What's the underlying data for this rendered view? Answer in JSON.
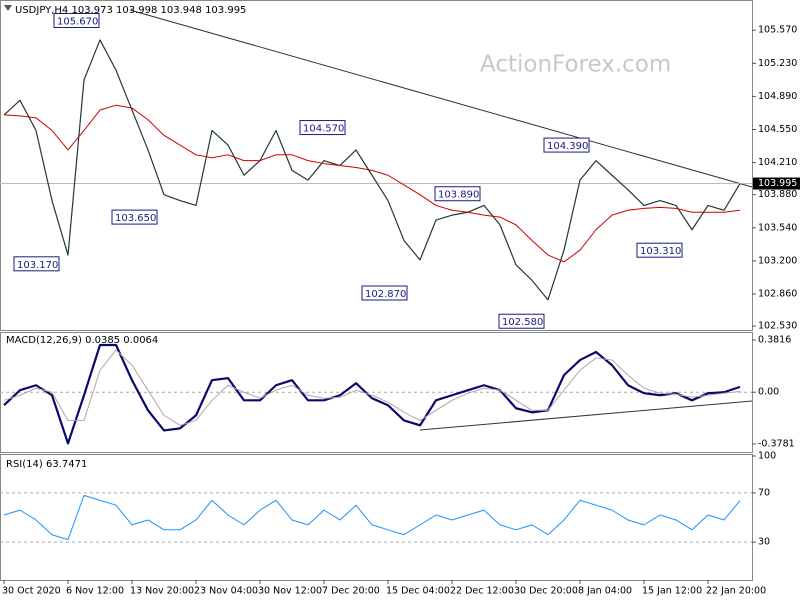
{
  "chart_data": [
    {
      "type": "line",
      "title": "USDJPY,H4  103.973 103.998 103.948 103.995",
      "watermark": "ActionForex.com",
      "ylim": [
        102.49,
        105.86
      ],
      "yticks": [
        {
          "value": 105.57,
          "label": "105.570"
        },
        {
          "value": 105.23,
          "label": "105.230"
        },
        {
          "value": 104.89,
          "label": "104.890"
        },
        {
          "value": 104.55,
          "label": "104.550"
        },
        {
          "value": 104.21,
          "label": "104.210"
        },
        {
          "value": 103.88,
          "label": "103.880"
        },
        {
          "value": 103.54,
          "label": "103.540"
        },
        {
          "value": 103.2,
          "label": "103.200"
        },
        {
          "value": 102.86,
          "label": "102.860"
        },
        {
          "value": 102.53,
          "label": "102.530"
        }
      ],
      "last_price": 103.995,
      "series": [
        {
          "color": "#203838",
          "width": 1.2,
          "values": [
            104.7,
            104.85,
            104.54,
            103.82,
            103.26,
            105.06,
            105.47,
            105.16,
            104.75,
            104.34,
            103.88,
            103.82,
            103.77,
            104.54,
            104.39,
            104.08,
            104.23,
            104.54,
            104.13,
            104.03,
            104.23,
            104.18,
            104.34,
            104.08,
            103.82,
            103.41,
            103.21,
            103.62,
            103.67,
            103.7,
            103.77,
            103.57,
            103.16,
            103.0,
            102.8,
            103.31,
            104.03,
            104.23,
            104.08,
            103.93,
            103.77,
            103.82,
            103.77,
            103.52,
            103.77,
            103.72,
            103.995
          ]
        },
        {
          "color": "#d00000",
          "width": 1,
          "values": [
            104.7,
            104.69,
            104.67,
            104.54,
            104.34,
            104.54,
            104.75,
            104.8,
            104.77,
            104.65,
            104.49,
            104.39,
            104.29,
            104.26,
            104.29,
            104.23,
            104.23,
            104.29,
            104.29,
            104.23,
            104.2,
            104.18,
            104.16,
            104.13,
            104.08,
            103.98,
            103.88,
            103.77,
            103.72,
            103.7,
            103.67,
            103.65,
            103.57,
            103.41,
            103.26,
            103.19,
            103.31,
            103.52,
            103.67,
            103.72,
            103.74,
            103.75,
            103.74,
            103.7,
            103.7,
            103.7,
            103.72
          ]
        }
      ],
      "annotations": [
        {
          "value": 105.67,
          "label": "105.670"
        },
        {
          "value": 103.65,
          "label": "103.650"
        },
        {
          "value": 103.17,
          "label": "103.170"
        },
        {
          "value": 104.57,
          "label": "104.570"
        },
        {
          "value": 102.87,
          "label": "102.870"
        },
        {
          "value": 103.89,
          "label": "103.890"
        },
        {
          "value": 102.58,
          "label": "102.580"
        },
        {
          "value": 104.39,
          "label": "104.390"
        },
        {
          "value": 103.31,
          "label": "103.310"
        }
      ]
    },
    {
      "type": "line",
      "title": "MACD(12,26,9) 0.0385 0.0064",
      "ylim": [
        -0.422,
        0.44
      ],
      "yticks": [
        0.3816,
        {
          "value": 0,
          "label": "0.00"
        },
        -0.3781
      ],
      "levels": [
        0
      ],
      "series": [
        {
          "color": "#0a0a6e",
          "width": 2.2,
          "values": [
            -0.095,
            0.015,
            0.051,
            -0.022,
            -0.374,
            -0.022,
            0.345,
            0.345,
            0.088,
            -0.132,
            -0.279,
            -0.264,
            -0.169,
            0.088,
            0.103,
            -0.059,
            -0.059,
            0.051,
            0.088,
            -0.059,
            -0.059,
            -0.022,
            0.066,
            -0.044,
            -0.095,
            -0.206,
            -0.242,
            -0.059,
            -0.022,
            0.015,
            0.051,
            0.015,
            -0.117,
            -0.147,
            -0.132,
            0.125,
            0.235,
            0.294,
            0.198,
            0.051,
            -0.007,
            -0.022,
            -0.007,
            -0.059,
            -0.007,
            0.0,
            0.039
          ]
        },
        {
          "color": "#b8a4a4",
          "width": 1,
          "values": [
            -0.059,
            -0.022,
            0.029,
            0,
            -0.206,
            -0.206,
            0.161,
            0.308,
            0.198,
            0.015,
            -0.169,
            -0.242,
            -0.206,
            -0.059,
            0.051,
            0,
            -0.044,
            0.015,
            0.051,
            -0.022,
            -0.044,
            -0.037,
            0.015,
            -0.022,
            -0.073,
            -0.147,
            -0.206,
            -0.132,
            -0.059,
            -0.007,
            0.029,
            0.015,
            -0.059,
            -0.132,
            -0.132,
            0.015,
            0.161,
            0.25,
            0.235,
            0.125,
            0.029,
            -0.007,
            -0.015,
            -0.037,
            -0.022,
            -0.007,
            0.006
          ]
        }
      ]
    },
    {
      "type": "line",
      "title": "RSI(14) 63.7471",
      "ylim": [
        0,
        100
      ],
      "yticks": [
        100,
        70,
        30
      ],
      "levels": [
        70,
        30
      ],
      "categories": [
        "30 Oct 2020",
        null,
        null,
        null,
        "6 Nov 12:00",
        null,
        null,
        null,
        "13 Nov 20:00",
        null,
        null,
        null,
        "23 Nov 04:00",
        null,
        null,
        null,
        "30 Nov 12:00",
        null,
        null,
        null,
        "7 Dec 20:00",
        null,
        null,
        null,
        "15 Dec 04:00",
        null,
        null,
        null,
        "22 Dec 12:00",
        null,
        null,
        null,
        "30 Dec 20:00",
        null,
        null,
        null,
        "8 Jan 04:00",
        null,
        null,
        null,
        "15 Jan 12:00",
        null,
        null,
        null,
        "22 Jan 20:00",
        null,
        null
      ],
      "series": [
        {
          "color": "#1e90ff",
          "width": 1,
          "values": [
            52,
            56,
            48,
            36,
            32,
            68,
            64,
            60,
            44,
            48,
            40,
            40,
            48,
            64,
            52,
            44,
            56,
            64,
            48,
            44,
            56,
            48,
            60,
            44,
            40,
            36,
            44,
            52,
            48,
            52,
            56,
            44,
            40,
            44,
            36,
            48,
            64,
            60,
            56,
            48,
            44,
            52,
            48,
            40,
            52,
            48,
            63.7471
          ]
        }
      ]
    }
  ]
}
